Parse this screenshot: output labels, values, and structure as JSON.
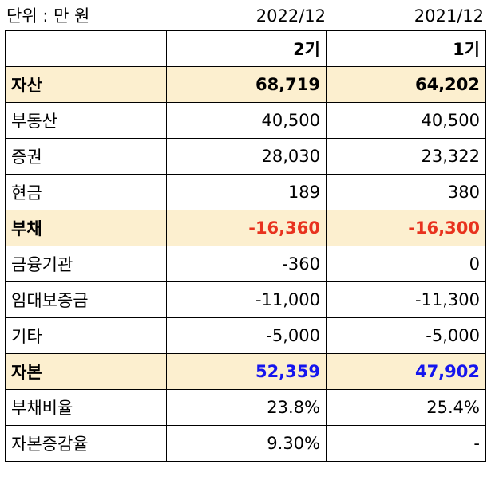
{
  "unit_label": "단위 : 만 원",
  "periods": [
    "2022/12",
    "2021/12"
  ],
  "terms": [
    "2기",
    "1기"
  ],
  "rows": [
    {
      "label": "자산",
      "v1": "68,719",
      "v2": "64,202"
    },
    {
      "label": "부동산",
      "v1": "40,500",
      "v2": "40,500"
    },
    {
      "label": "증권",
      "v1": "28,030",
      "v2": "23,322"
    },
    {
      "label": "현금",
      "v1": "189",
      "v2": "380"
    },
    {
      "label": "부채",
      "v1": "-16,360",
      "v2": "-16,300"
    },
    {
      "label": "금융기관",
      "v1": "-360",
      "v2": "0"
    },
    {
      "label": "임대보증금",
      "v1": "-11,000",
      "v2": "-11,300"
    },
    {
      "label": "기타",
      "v1": "-5,000",
      "v2": "-5,000"
    },
    {
      "label": "자본",
      "v1": "52,359",
      "v2": "47,902"
    },
    {
      "label": "부채비율",
      "v1": "23.8%",
      "v2": "25.4%"
    },
    {
      "label": "자본증감율",
      "v1": "9.30%",
      "v2": "-"
    }
  ],
  "colors": {
    "highlight_row": "#fcefcf",
    "negative": "#e8321e",
    "positive": "#1515ee"
  }
}
